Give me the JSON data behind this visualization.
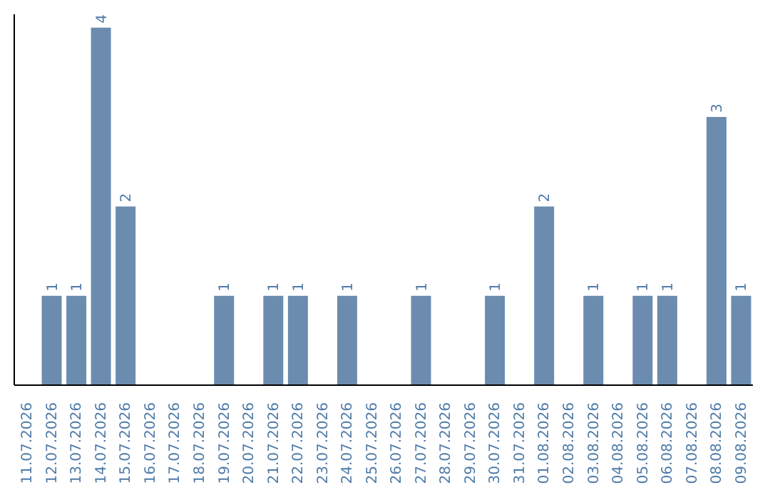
{
  "chart_data": {
    "type": "bar",
    "categories": [
      "11.07.2026",
      "12.07.2026",
      "13.07.2026",
      "14.07.2026",
      "15.07.2026",
      "16.07.2026",
      "17.07.2026",
      "18.07.2026",
      "19.07.2026",
      "20.07.2026",
      "21.07.2026",
      "22.07.2026",
      "23.07.2026",
      "24.07.2026",
      "25.07.2026",
      "26.07.2026",
      "27.07.2026",
      "28.07.2026",
      "29.07.2026",
      "30.07.2026",
      "31.07.2026",
      "01.08.2026",
      "02.08.2026",
      "03.08.2026",
      "04.08.2026",
      "05.08.2026",
      "06.08.2026",
      "07.08.2026",
      "08.08.2026",
      "09.08.2026"
    ],
    "values": [
      0,
      1,
      1,
      4,
      2,
      0,
      0,
      0,
      1,
      0,
      1,
      1,
      0,
      1,
      0,
      0,
      1,
      0,
      0,
      1,
      0,
      2,
      0,
      1,
      0,
      1,
      1,
      0,
      3,
      1
    ],
    "value_labels": [
      null,
      "1",
      "1",
      "4",
      "2",
      null,
      null,
      null,
      "1",
      null,
      "1",
      "1",
      null,
      "1",
      null,
      null,
      "1",
      null,
      null,
      "1",
      null,
      "2",
      null,
      "1",
      null,
      "1",
      "1",
      null,
      "3",
      "1"
    ],
    "color": "#6b8cae",
    "ylim": [
      0,
      4.15
    ],
    "tick_labels": "x",
    "grid": false
  }
}
